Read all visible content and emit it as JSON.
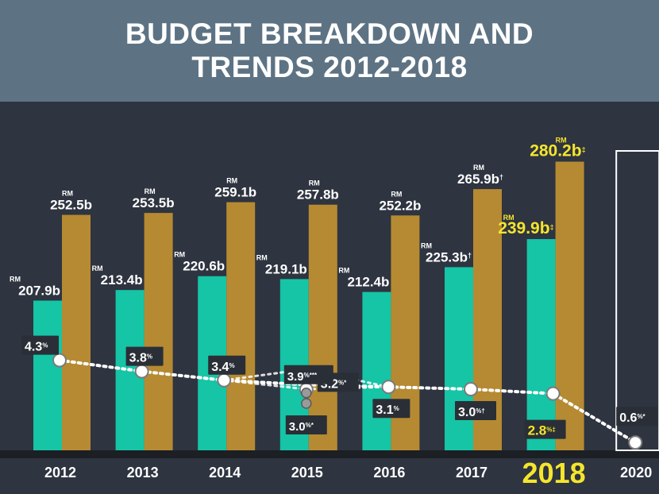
{
  "header": {
    "title_line1": "BUDGET BREAKDOWN AND",
    "title_line2": "TRENDS 2012-2018"
  },
  "colors": {
    "header_bg": "#5d7384",
    "background": "#2e3440",
    "operating_bar": "#16c4a6",
    "total_bar": "#b68a32",
    "highlight_text": "#f5e52c",
    "label_text": "#ffffff",
    "baseline": "#1c1f24"
  },
  "chart_data": {
    "type": "bar",
    "categories": [
      "2012",
      "2013",
      "2014",
      "2015",
      "2016",
      "2017",
      "2018",
      "2020"
    ],
    "highlight_category": "2018",
    "currency_prefix": "RM",
    "series": [
      {
        "key": "teal",
        "values": [
          207.9,
          213.4,
          220.6,
          219.1,
          212.4,
          225.3,
          239.9,
          null
        ],
        "labels": [
          "207.9b",
          "213.4b",
          "220.6b",
          "219.1b",
          "212.4b",
          "225.3b",
          "239.9b",
          ""
        ],
        "markers": [
          "",
          "",
          "",
          "",
          "",
          "†",
          "‡",
          ""
        ]
      },
      {
        "key": "gold",
        "values": [
          252.5,
          253.5,
          259.1,
          257.8,
          252.2,
          265.9,
          280.2,
          null
        ],
        "labels": [
          "252.5b",
          "253.5b",
          "259.1b",
          "257.8b",
          "252.2b",
          "265.9b",
          "280.2b",
          ""
        ],
        "markers": [
          "",
          "",
          "",
          "",
          "",
          "†",
          "‡",
          ""
        ]
      }
    ],
    "rate_line": {
      "unit": "%",
      "values": [
        4.3,
        3.8,
        3.4,
        3.2,
        3.1,
        3.0,
        2.8,
        0.6
      ],
      "labels": [
        "4.3",
        "3.8",
        "3.4",
        "3.2",
        "3.1",
        "3.0",
        "2.8",
        "0.6"
      ],
      "markers": [
        "",
        "",
        "",
        "*",
        "",
        "†",
        "‡",
        "*"
      ],
      "alternates": [
        {
          "category": "2015",
          "value": 3.9,
          "label": "3.9",
          "marker": "***"
        },
        {
          "category": "2015",
          "value": 3.0,
          "label": "3.0",
          "marker": "*"
        }
      ]
    },
    "placeholder_category": "2020"
  }
}
